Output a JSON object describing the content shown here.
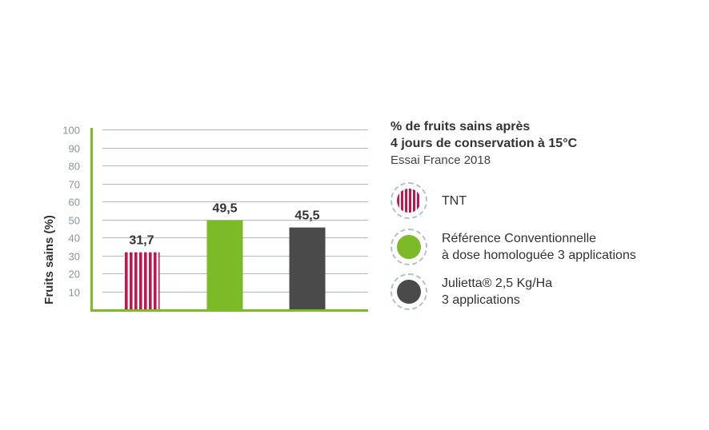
{
  "chart_data": {
    "type": "bar",
    "title_lines": [
      "% de fruits sains après",
      "4 jours de conservation à 15°C"
    ],
    "subtitle": "Essai France 2018",
    "ylabel": "Fruits sains (%)",
    "ylim": [
      0,
      100
    ],
    "yticks": [
      10,
      20,
      30,
      40,
      50,
      60,
      70,
      80,
      90,
      100
    ],
    "grid": true,
    "legend_position": "right",
    "value_labels": [
      "31,7",
      "49,5",
      "45,5"
    ],
    "series": [
      {
        "legend_lines": [
          "TNT"
        ],
        "value": 31.7,
        "color": "#c0174f",
        "pattern": "vertical-stripes"
      },
      {
        "legend_lines": [
          "Référence Conventionnelle",
          "à dose homologuée 3 applications"
        ],
        "value": 49.5,
        "color": "#7dba27",
        "pattern": "solid"
      },
      {
        "legend_lines": [
          "Julietta® 2,5 Kg/Ha",
          "3 applications"
        ],
        "value": 45.5,
        "color": "#4a4a4a",
        "pattern": "solid"
      }
    ],
    "colors": {
      "axis": "#7dba27",
      "grid": "#b0bcc6",
      "ticks": "#8a95a3"
    }
  }
}
